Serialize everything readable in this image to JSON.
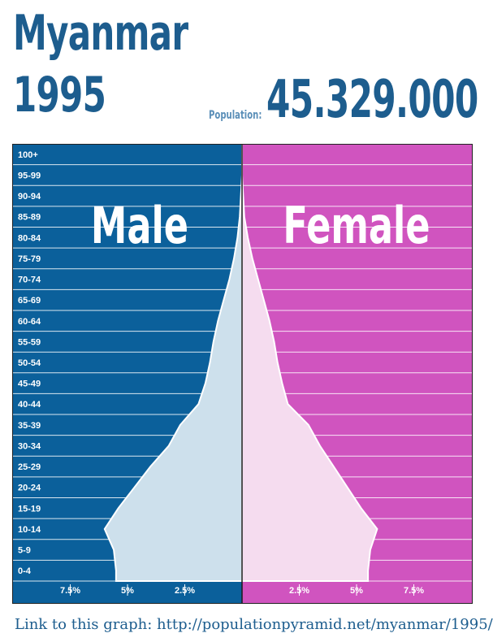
{
  "header": {
    "country": "Myanmar",
    "year": "1995",
    "population_label": "Population:",
    "population_value": "45.329.000"
  },
  "colors": {
    "male_bg": "#0b609b",
    "female_bg": "#d054bf",
    "male_fill": "#cde0ec",
    "female_fill": "#f5dcef",
    "title_blue": "#1d5d8e"
  },
  "footer": {
    "link_text": "Link to this graph: http://populationpyramid.net/myanmar/1995/"
  },
  "chart_data": {
    "type": "area",
    "left_label": "Male",
    "right_label": "Female",
    "age_groups": [
      "100+",
      "95-99",
      "90-94",
      "85-89",
      "80-84",
      "75-79",
      "70-74",
      "65-69",
      "60-64",
      "55-59",
      "50-54",
      "45-49",
      "40-44",
      "35-39",
      "30-34",
      "25-29",
      "20-24",
      "15-19",
      "10-14",
      "5-9",
      "0-4"
    ],
    "male": [
      0,
      0,
      0.05,
      0.1,
      0.2,
      0.35,
      0.55,
      0.8,
      1.05,
      1.25,
      1.4,
      1.6,
      1.9,
      2.7,
      3.2,
      4.0,
      4.7,
      5.4,
      6.0,
      5.6,
      5.5
    ],
    "female": [
      0,
      0,
      0.05,
      0.1,
      0.25,
      0.45,
      0.7,
      0.95,
      1.2,
      1.4,
      1.55,
      1.75,
      2.0,
      2.9,
      3.4,
      4.0,
      4.6,
      5.2,
      5.9,
      5.6,
      5.5
    ],
    "x_ticks": [
      "7.5%",
      "5%",
      "2.5%",
      "2.5%",
      "5%",
      "7.5%"
    ],
    "xlim": [
      -10,
      10
    ]
  }
}
